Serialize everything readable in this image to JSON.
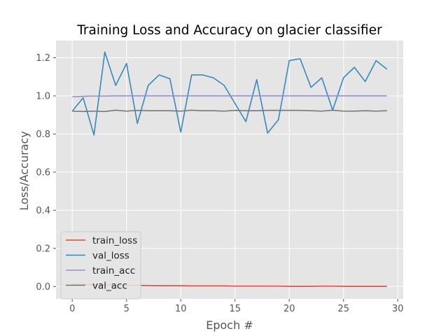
{
  "chart_data": {
    "type": "line",
    "title": "Training Loss and Accuracy on glacier classifier",
    "xlabel": "Epoch #",
    "ylabel": "Loss/Accuracy",
    "xlim": [
      -1.5,
      30.5
    ],
    "ylim": [
      -0.065,
      1.29
    ],
    "xticks": [
      0,
      5,
      10,
      15,
      20,
      25,
      30
    ],
    "yticks": [
      0.0,
      0.2,
      0.4,
      0.6,
      0.8,
      1.0,
      1.2
    ],
    "xtick_labels": [
      "0",
      "5",
      "10",
      "15",
      "20",
      "25",
      "30"
    ],
    "ytick_labels": [
      "0.0",
      "0.2",
      "0.4",
      "0.6",
      "0.8",
      "1.0",
      "1.2"
    ],
    "grid": true,
    "legend_position": "lower-left",
    "x": [
      0,
      1,
      2,
      3,
      4,
      5,
      6,
      7,
      8,
      9,
      10,
      11,
      12,
      13,
      14,
      15,
      16,
      17,
      18,
      19,
      20,
      21,
      22,
      23,
      24,
      25,
      26,
      27,
      28,
      29
    ],
    "series": [
      {
        "name": "train_loss",
        "color": "#e24a33",
        "values": [
          0.012,
          0.011,
          0.009,
          0.008,
          0.007,
          0.006,
          0.006,
          0.005,
          0.004,
          0.004,
          0.004,
          0.003,
          0.003,
          0.003,
          0.003,
          0.002,
          0.002,
          0.002,
          0.002,
          0.002,
          0.001,
          0.001,
          0.001,
          0.002,
          0.002,
          0.001,
          0.001,
          0.001,
          0.001,
          0.001
        ]
      },
      {
        "name": "val_loss",
        "color": "#348abd",
        "values": [
          0.92,
          0.99,
          0.795,
          1.23,
          1.055,
          1.17,
          0.855,
          1.055,
          1.11,
          1.09,
          0.81,
          1.11,
          1.11,
          1.095,
          1.055,
          0.96,
          0.865,
          1.085,
          0.805,
          0.875,
          1.185,
          1.195,
          1.045,
          1.095,
          0.925,
          1.095,
          1.15,
          1.075,
          1.185,
          1.14
        ]
      },
      {
        "name": "train_acc",
        "color": "#988ed5",
        "values": [
          0.995,
          0.998,
          0.999,
          0.999,
          1.0,
          1.0,
          1.0,
          1.0,
          1.0,
          1.0,
          1.0,
          1.0,
          1.0,
          1.0,
          1.0,
          1.0,
          1.0,
          1.0,
          1.0,
          1.0,
          1.0,
          1.0,
          1.0,
          1.0,
          1.0,
          1.0,
          1.0,
          1.0,
          1.0,
          1.0
        ]
      },
      {
        "name": "val_acc",
        "color": "#777777",
        "values": [
          0.92,
          0.918,
          0.92,
          0.918,
          0.925,
          0.92,
          0.924,
          0.922,
          0.922,
          0.922,
          0.92,
          0.925,
          0.922,
          0.922,
          0.92,
          0.924,
          0.922,
          0.922,
          0.924,
          0.924,
          0.924,
          0.924,
          0.922,
          0.92,
          0.925,
          0.92,
          0.92,
          0.922,
          0.92,
          0.922
        ]
      }
    ]
  }
}
